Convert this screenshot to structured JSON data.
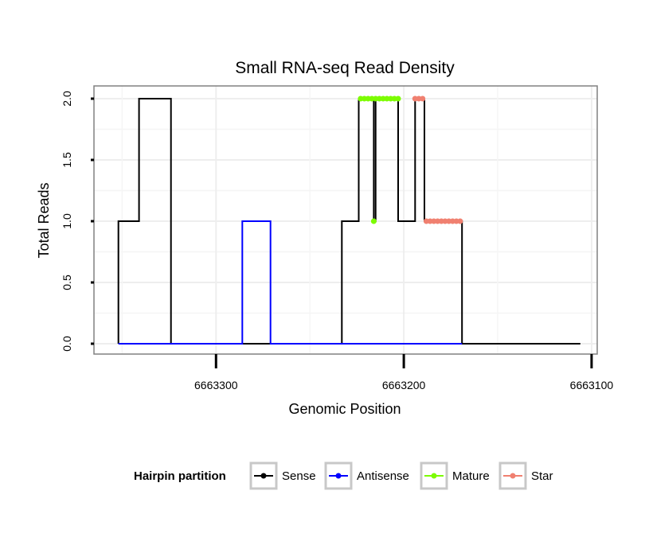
{
  "chart_data": {
    "type": "line",
    "title": "Small RNA-seq Read Density",
    "xlabel": "Genomic Position",
    "ylabel": "Total Reads",
    "x_reversed": true,
    "xlim": [
      6663365,
      6663097
    ],
    "ylim": [
      0,
      2
    ],
    "x_ticks": [
      6663300,
      6663200,
      6663100
    ],
    "x_tick_labels": [
      "6663300",
      "6663200",
      "6663100"
    ],
    "y_ticks": [
      0,
      0.5,
      1,
      1.5,
      2
    ],
    "y_tick_labels": [
      "0.0",
      "0.5",
      "1.0",
      "1.5",
      "2.0"
    ],
    "grid": true,
    "legend": {
      "title": "Hairpin partition",
      "position": "bottom",
      "entries": [
        "Sense",
        "Antisense",
        "Mature",
        "Star"
      ]
    },
    "series": [
      {
        "name": "Sense",
        "color": "#000000",
        "style": "step-line",
        "points": [
          [
            6663352,
            0
          ],
          [
            6663352,
            1
          ],
          [
            6663341,
            1
          ],
          [
            6663341,
            2
          ],
          [
            6663324,
            2
          ],
          [
            6663324,
            0
          ],
          [
            6663233,
            0
          ],
          [
            6663233,
            1
          ],
          [
            6663224,
            1
          ],
          [
            6663224,
            2
          ],
          [
            6663216,
            2
          ],
          [
            6663216,
            1
          ],
          [
            6663215,
            1
          ],
          [
            6663215,
            2
          ],
          [
            6663203,
            2
          ],
          [
            6663203,
            1
          ],
          [
            6663194,
            1
          ],
          [
            6663194,
            2
          ],
          [
            6663189,
            2
          ],
          [
            6663189,
            1
          ],
          [
            6663169,
            1
          ],
          [
            6663169,
            0
          ],
          [
            6663106,
            0
          ]
        ]
      },
      {
        "name": "Antisense",
        "color": "#0000ff",
        "style": "step-line",
        "points": [
          [
            6663352,
            0
          ],
          [
            6663286,
            0
          ],
          [
            6663286,
            1
          ],
          [
            6663271,
            1
          ],
          [
            6663271,
            0
          ],
          [
            6663169,
            0
          ]
        ]
      },
      {
        "name": "Mature",
        "color": "#7cfc00",
        "style": "points",
        "points": [
          [
            6663223,
            2
          ],
          [
            6663221,
            2
          ],
          [
            6663219,
            2
          ],
          [
            6663217,
            2
          ],
          [
            6663215,
            2
          ],
          [
            6663216,
            1
          ],
          [
            6663213,
            2
          ],
          [
            6663211,
            2
          ],
          [
            6663209,
            2
          ],
          [
            6663207,
            2
          ],
          [
            6663205,
            2
          ],
          [
            6663203,
            2
          ]
        ]
      },
      {
        "name": "Star",
        "color": "#f08070",
        "style": "points",
        "points": [
          [
            6663194,
            2
          ],
          [
            6663192,
            2
          ],
          [
            6663190,
            2
          ],
          [
            6663188,
            1
          ],
          [
            6663186,
            1
          ],
          [
            6663184,
            1
          ],
          [
            6663182,
            1
          ],
          [
            6663180,
            1
          ],
          [
            6663178,
            1
          ],
          [
            6663176,
            1
          ],
          [
            6663174,
            1
          ],
          [
            6663172,
            1
          ],
          [
            6663170,
            1
          ]
        ]
      }
    ]
  }
}
